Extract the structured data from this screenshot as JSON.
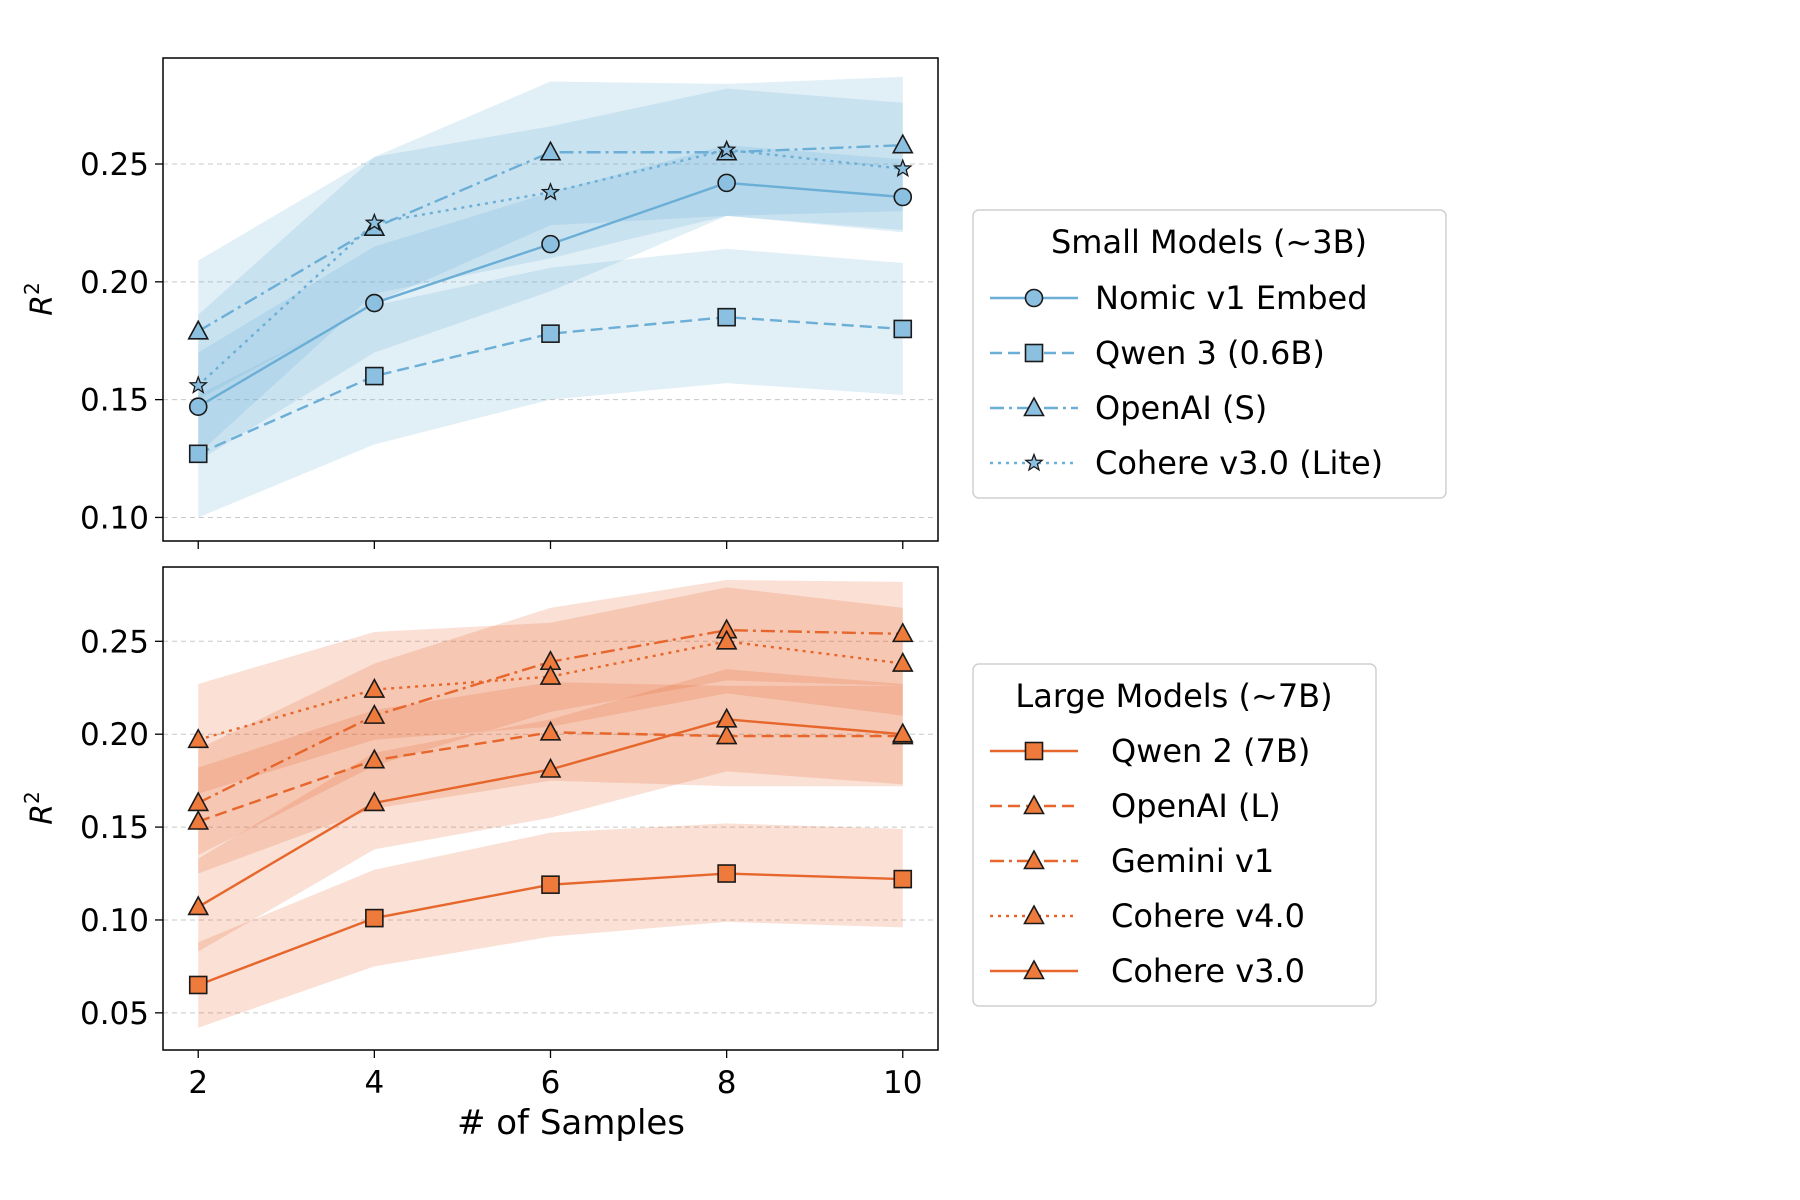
{
  "chart_data": [
    {
      "type": "line",
      "panel": "top",
      "x": [
        2,
        4,
        6,
        8,
        10
      ],
      "ylabel": "R",
      "ylabel_sup": "2",
      "xlabel": "",
      "ylim": [
        0.09,
        0.295
      ],
      "yticks": [
        0.1,
        0.15,
        0.2,
        0.25
      ],
      "ytick_labels": [
        "0.10",
        "0.15",
        "0.20",
        "0.25"
      ],
      "grid": "y-dashed",
      "legend_title": "Small Models (~3B)",
      "legend_position": "right",
      "color": "#6baed6",
      "marker_fill": "#8cc0e0",
      "series": [
        {
          "name": "Nomic v1 Embed",
          "values": [
            0.147,
            0.191,
            0.216,
            0.242,
            0.236
          ],
          "lower": [
            0.124,
            0.17,
            0.196,
            0.228,
            0.221
          ],
          "upper": [
            0.17,
            0.215,
            0.238,
            0.258,
            0.252
          ],
          "dash": "solid",
          "marker": "circle"
        },
        {
          "name": "Qwen 3 (0.6B)",
          "values": [
            0.127,
            0.16,
            0.178,
            0.185,
            0.18
          ],
          "lower": [
            0.1,
            0.131,
            0.15,
            0.157,
            0.152
          ],
          "upper": [
            0.152,
            0.19,
            0.206,
            0.214,
            0.208
          ],
          "dash": "dashed",
          "marker": "square"
        },
        {
          "name": "OpenAI (S)",
          "values": [
            0.179,
            0.223,
            0.255,
            0.255,
            0.258
          ],
          "lower": [
            0.15,
            0.191,
            0.224,
            0.228,
            0.23
          ],
          "upper": [
            0.209,
            0.253,
            0.285,
            0.284,
            0.287
          ],
          "dash": "dashdot",
          "marker": "triangle"
        },
        {
          "name": "Cohere v3.0 (Lite)",
          "values": [
            0.156,
            0.225,
            0.238,
            0.256,
            0.248
          ],
          "lower": [
            0.127,
            0.195,
            0.21,
            0.228,
            0.222
          ],
          "upper": [
            0.186,
            0.253,
            0.266,
            0.282,
            0.276
          ],
          "dash": "dotted",
          "marker": "star"
        }
      ]
    },
    {
      "type": "line",
      "panel": "bottom",
      "x": [
        2,
        4,
        6,
        8,
        10
      ],
      "xticks": [
        "2",
        "4",
        "6",
        "8",
        "10"
      ],
      "xlabel": "# of Samples",
      "ylabel": "R",
      "ylabel_sup": "2",
      "ylim": [
        0.03,
        0.29
      ],
      "yticks": [
        0.05,
        0.1,
        0.15,
        0.2,
        0.25
      ],
      "ytick_labels": [
        "0.05",
        "0.10",
        "0.15",
        "0.20",
        "0.25"
      ],
      "grid": "y-dashed",
      "legend_title": "Large Models (~7B)",
      "legend_position": "right",
      "color": "#e6662b",
      "marker_fill": "#ee7a3c",
      "series": [
        {
          "name": "Qwen 2 (7B)",
          "values": [
            0.065,
            0.101,
            0.119,
            0.125,
            0.122
          ],
          "lower": [
            0.042,
            0.075,
            0.091,
            0.099,
            0.096
          ],
          "upper": [
            0.088,
            0.127,
            0.147,
            0.152,
            0.149
          ],
          "dash": "solid",
          "marker": "square"
        },
        {
          "name": "OpenAI (L)",
          "values": [
            0.153,
            0.186,
            0.201,
            0.199,
            0.199
          ],
          "lower": [
            0.125,
            0.16,
            0.175,
            0.172,
            0.172
          ],
          "upper": [
            0.182,
            0.213,
            0.228,
            0.226,
            0.226
          ],
          "dash": "dashed",
          "marker": "triangle"
        },
        {
          "name": "Gemini v1",
          "values": [
            0.163,
            0.21,
            0.239,
            0.256,
            0.254
          ],
          "lower": [
            0.135,
            0.183,
            0.212,
            0.229,
            0.226
          ],
          "upper": [
            0.192,
            0.238,
            0.268,
            0.283,
            0.282
          ],
          "dash": "dashdot",
          "marker": "triangle"
        },
        {
          "name": "Cohere v4.0",
          "values": [
            0.197,
            0.224,
            0.231,
            0.25,
            0.238
          ],
          "lower": [
            0.168,
            0.197,
            0.204,
            0.222,
            0.21
          ],
          "upper": [
            0.227,
            0.255,
            0.26,
            0.279,
            0.268
          ],
          "dash": "dotted",
          "marker": "triangle"
        },
        {
          "name": "Cohere v3.0",
          "values": [
            0.107,
            0.163,
            0.181,
            0.208,
            0.2
          ],
          "lower": [
            0.083,
            0.138,
            0.155,
            0.18,
            0.173
          ],
          "upper": [
            0.133,
            0.19,
            0.208,
            0.235,
            0.227
          ],
          "dash": "solid",
          "marker": "triangle"
        }
      ]
    }
  ]
}
